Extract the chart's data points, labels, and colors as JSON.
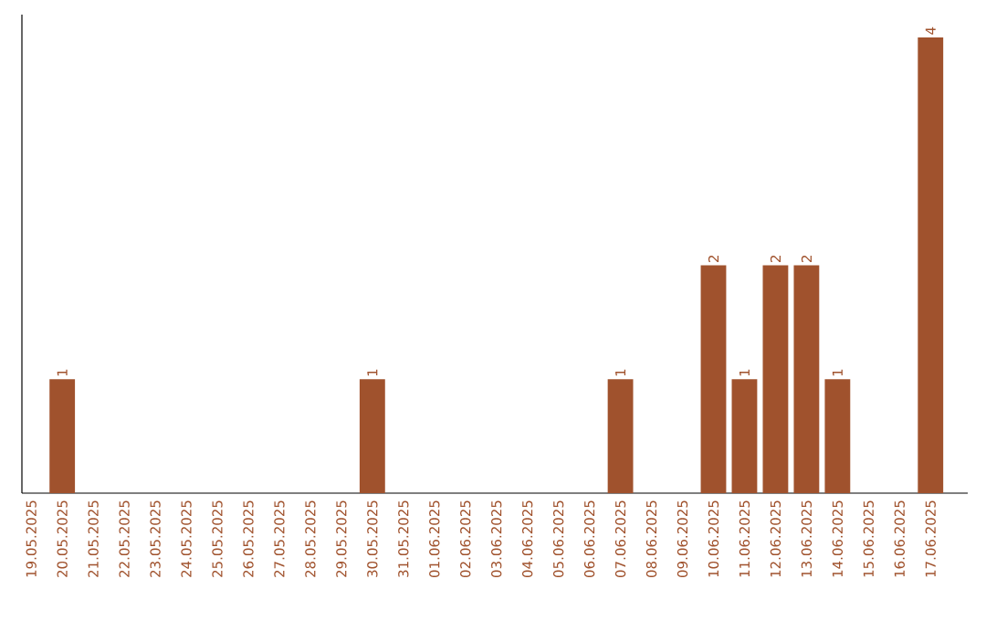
{
  "chart_data": {
    "type": "bar",
    "color": "#a0522d",
    "categories": [
      "19.05.2025",
      "20.05.2025",
      "21.05.2025",
      "22.05.2025",
      "23.05.2025",
      "24.05.2025",
      "25.05.2025",
      "26.05.2025",
      "27.05.2025",
      "28.05.2025",
      "29.05.2025",
      "30.05.2025",
      "31.05.2025",
      "01.06.2025",
      "02.06.2025",
      "03.06.2025",
      "04.06.2025",
      "05.06.2025",
      "06.06.2025",
      "07.06.2025",
      "08.06.2025",
      "09.06.2025",
      "10.06.2025",
      "11.06.2025",
      "12.06.2025",
      "13.06.2025",
      "14.06.2025",
      "15.06.2025",
      "16.06.2025",
      "17.06.2025"
    ],
    "values": [
      0,
      1,
      0,
      0,
      0,
      0,
      0,
      0,
      0,
      0,
      0,
      1,
      0,
      0,
      0,
      0,
      0,
      0,
      0,
      1,
      0,
      0,
      2,
      1,
      2,
      2,
      1,
      0,
      0,
      4
    ],
    "value_labels": [
      null,
      "1",
      null,
      null,
      null,
      null,
      null,
      null,
      null,
      null,
      null,
      "1",
      null,
      null,
      null,
      null,
      null,
      null,
      null,
      "1",
      null,
      null,
      "2",
      "1",
      "2",
      "2",
      "1",
      null,
      null,
      "4"
    ],
    "tick_labels": "x"
  }
}
